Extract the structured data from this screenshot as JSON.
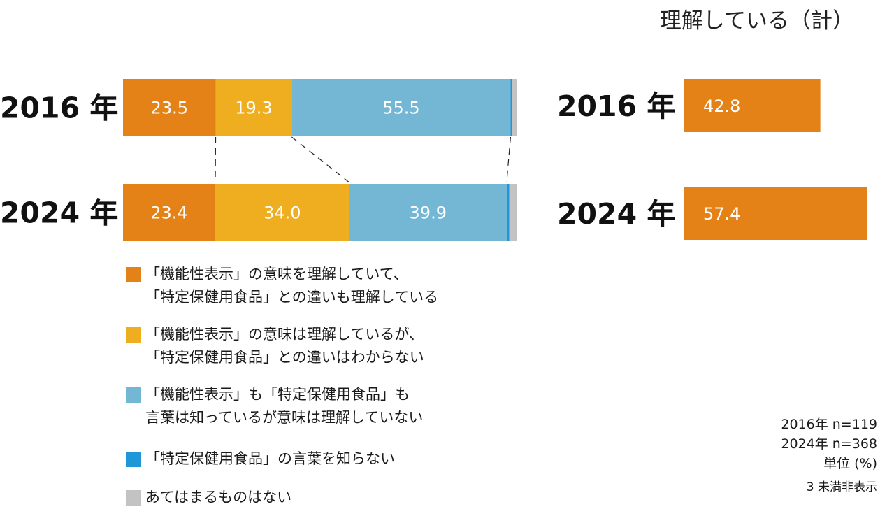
{
  "chart_data": [
    {
      "type": "bar",
      "orientation": "horizontal",
      "stacked": true,
      "percent": true,
      "categories": [
        "2016 年",
        "2024 年"
      ],
      "series": [
        {
          "name": "「機能性表示」の意味を理解していて、\n「特定保健用食品」との違いも理解している",
          "values": [
            23.5,
            23.4
          ],
          "color": "#E58217"
        },
        {
          "name": "「機能性表示」の意味は理解しているが、\n「特定保健用食品」との違いはわからない",
          "values": [
            19.3,
            34.0
          ],
          "color": "#EFAE1F"
        },
        {
          "name": "「機能性表示」も「特定保健用食品」も\n言葉は知っているが意味は理解していない",
          "values": [
            55.5,
            39.9
          ],
          "color": "#74B7D4"
        },
        {
          "name": "「特定保健用食品」の言葉を知らない",
          "values": [
            0.3,
            0.7
          ],
          "color": "#1E96D7"
        },
        {
          "name": "あてはまるものはない",
          "values": [
            1.4,
            2.0
          ],
          "color": "#C3C3C3"
        }
      ],
      "data_labels": [
        [
          "23.5",
          "19.3",
          "55.5",
          "",
          ""
        ],
        [
          "23.4",
          "34.0",
          "39.9",
          "",
          ""
        ]
      ],
      "xlim": [
        0,
        100
      ]
    },
    {
      "type": "bar",
      "orientation": "horizontal",
      "title": "理解している（計）",
      "categories": [
        "2016 年",
        "2024 年"
      ],
      "values": [
        42.8,
        57.4
      ],
      "data_labels": [
        "42.8",
        "57.4"
      ],
      "color": "#E58217"
    }
  ],
  "notes": {
    "n2016": "2016年 n=119",
    "n2024": "2024年 n=368",
    "unit": "単位 (%)",
    "omit": "3 未満非表示"
  }
}
